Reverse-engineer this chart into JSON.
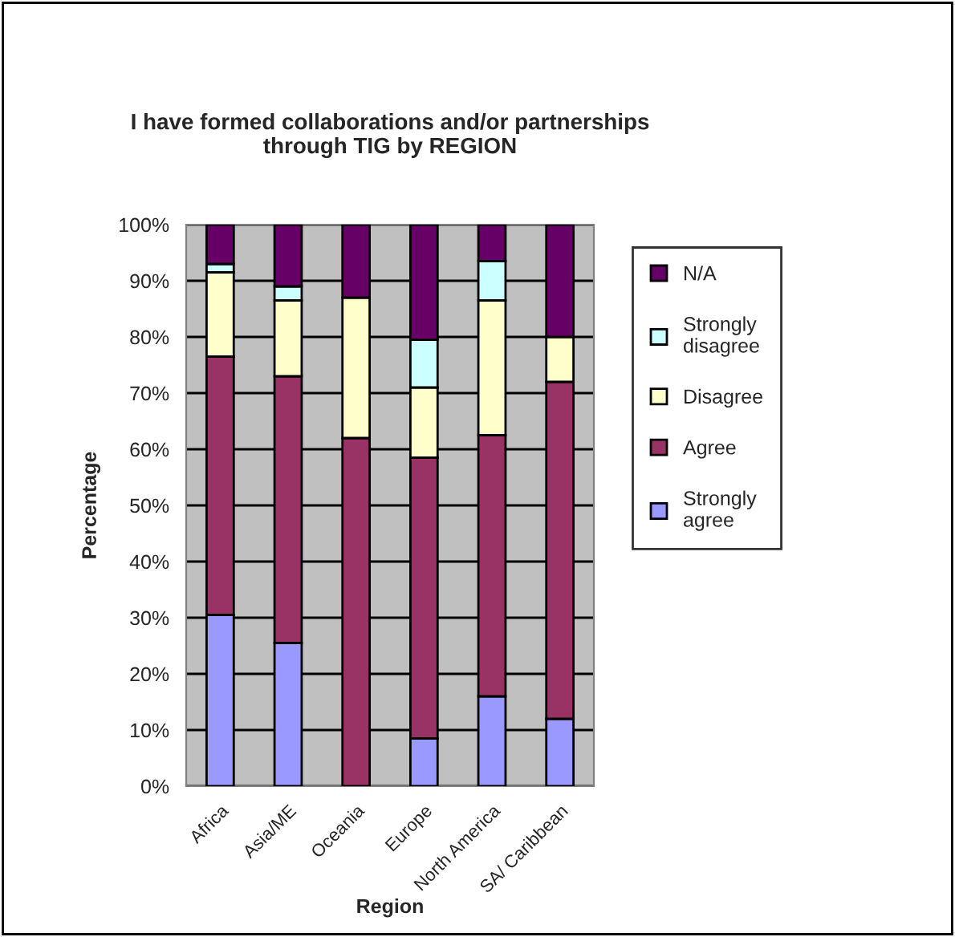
{
  "chart_data": {
    "type": "bar",
    "stacked": true,
    "title": "I have formed collaborations and/or partnerships\nthrough TIG by REGION",
    "xlabel": "Region",
    "ylabel": "Percentage",
    "categories": [
      "Africa",
      "Asia/ME",
      "Oceania",
      "Europe",
      "North America",
      "SA/ Caribbean"
    ],
    "series": [
      {
        "name": "Strongly\nagree",
        "color": "#9999ff",
        "values": [
          30.5,
          25.5,
          0,
          8.5,
          16,
          12
        ]
      },
      {
        "name": "Agree",
        "color": "#993366",
        "values": [
          46,
          47.5,
          62,
          50,
          46.5,
          60
        ]
      },
      {
        "name": "Disagree",
        "color": "#ffffcc",
        "values": [
          15,
          13.5,
          25,
          12.5,
          24,
          8
        ]
      },
      {
        "name": "Strongly\ndisagree",
        "color": "#ccffff",
        "values": [
          1.5,
          2.5,
          0,
          8.5,
          7,
          0
        ]
      },
      {
        "name": "N/A",
        "color": "#660066",
        "values": [
          7,
          11,
          13,
          20.5,
          6.5,
          20
        ]
      }
    ],
    "ylim": [
      0,
      100
    ],
    "yticks": [
      {
        "value": 0,
        "label": "0%"
      },
      {
        "value": 10,
        "label": "10%"
      },
      {
        "value": 20,
        "label": "20%"
      },
      {
        "value": 30,
        "label": "30%"
      },
      {
        "value": 40,
        "label": "40%"
      },
      {
        "value": 50,
        "label": "50%"
      },
      {
        "value": 60,
        "label": "60%"
      },
      {
        "value": 70,
        "label": "70%"
      },
      {
        "value": 80,
        "label": "80%"
      },
      {
        "value": 90,
        "label": "90%"
      },
      {
        "value": 100,
        "label": "100%"
      }
    ],
    "grid": "y",
    "legend": "right"
  }
}
